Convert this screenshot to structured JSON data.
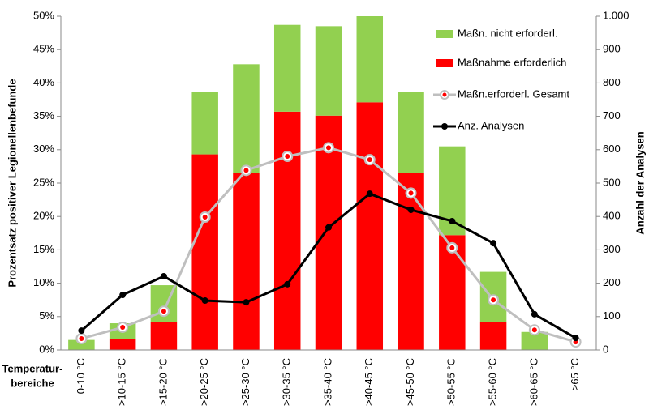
{
  "chart_data": {
    "type": "bar",
    "stacked": true,
    "ylabel": "Prozentsatz positiver Legionellenbefunde",
    "y2label": "Anzahl der Analysen",
    "xlabel": [
      "Temperatur-",
      "bereiche"
    ],
    "categories": [
      "0-10 °C",
      ">10-15 °C",
      ">15-20 °C",
      ">20-25 °C",
      ">25-30 °C",
      ">30-35 °C",
      ">35-40 °C",
      ">40-45 °C",
      ">45-50 °C",
      ">50-55 °C",
      ">55-60 °C",
      ">60-65 °C",
      ">65 °C"
    ],
    "series": [
      {
        "name": "Maßn. nicht erforderl.",
        "type": "bar",
        "color": "#92d050",
        "values": [
          1.5,
          2.3,
          5.5,
          9.3,
          16.3,
          13.0,
          13.4,
          12.9,
          12.1,
          13.3,
          7.5,
          2.7,
          0
        ]
      },
      {
        "name": "Maßnahme erforderlich",
        "type": "bar",
        "color": "#ff0000",
        "values": [
          0,
          1.7,
          4.2,
          29.3,
          26.5,
          35.7,
          35.1,
          37.1,
          26.5,
          17.2,
          4.2,
          0,
          0
        ]
      },
      {
        "name": "Maßn.erforderl. Gesamt",
        "type": "line",
        "color": "#bfbfbf",
        "values": [
          1.7,
          3.4,
          5.8,
          19.9,
          26.9,
          29.0,
          30.3,
          28.5,
          23.5,
          15.3,
          7.5,
          3.0,
          1.2
        ]
      },
      {
        "name": "Anz. Analysen",
        "type": "line",
        "axis": "y2",
        "color": "#000000",
        "values": [
          58,
          165,
          221,
          148,
          143,
          197,
          367,
          468,
          420,
          386,
          320,
          107,
          36
        ]
      }
    ],
    "ylim": [
      0,
      50
    ],
    "yticks": [
      {
        "value": 0,
        "label": "0%"
      },
      {
        "value": 5,
        "label": "5%"
      },
      {
        "value": 10,
        "label": "10%"
      },
      {
        "value": 15,
        "label": "15%"
      },
      {
        "value": 20,
        "label": "20%"
      },
      {
        "value": 25,
        "label": "25%"
      },
      {
        "value": 30,
        "label": "30%"
      },
      {
        "value": 35,
        "label": "35%"
      },
      {
        "value": 40,
        "label": "40%"
      },
      {
        "value": 45,
        "label": "45%"
      },
      {
        "value": 50,
        "label": "50%"
      }
    ],
    "y2lim": [
      0,
      1000
    ],
    "y2ticks": [
      0,
      100,
      200,
      300,
      400,
      500,
      600,
      700,
      800,
      900,
      {
        "value": 1000,
        "label": "1.000"
      }
    ],
    "grid": false,
    "legend": "top-right"
  }
}
